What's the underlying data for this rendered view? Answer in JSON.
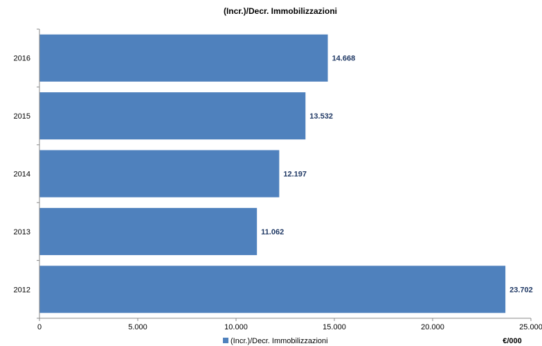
{
  "chart_data": {
    "type": "bar",
    "orientation": "horizontal",
    "title": "(Incr.)/Decr. Immobilizzazioni",
    "categories": [
      "2012",
      "2013",
      "2014",
      "2015",
      "2016"
    ],
    "series": [
      {
        "name": "(Incr.)/Decr. Immobilizzazioni",
        "values": [
          23702,
          11062,
          12197,
          13532,
          14668
        ],
        "data_labels": [
          "23.702",
          "11.062",
          "12.197",
          "13.532",
          "14.668"
        ],
        "color": "#4f81bd"
      }
    ],
    "x_ticks": [
      "0",
      "5.000",
      "10.000",
      "15.000",
      "20.000",
      "25.000"
    ],
    "xlim": [
      0,
      25000
    ],
    "unit_label": "€/000",
    "legend_position": "bottom",
    "grid": false
  }
}
